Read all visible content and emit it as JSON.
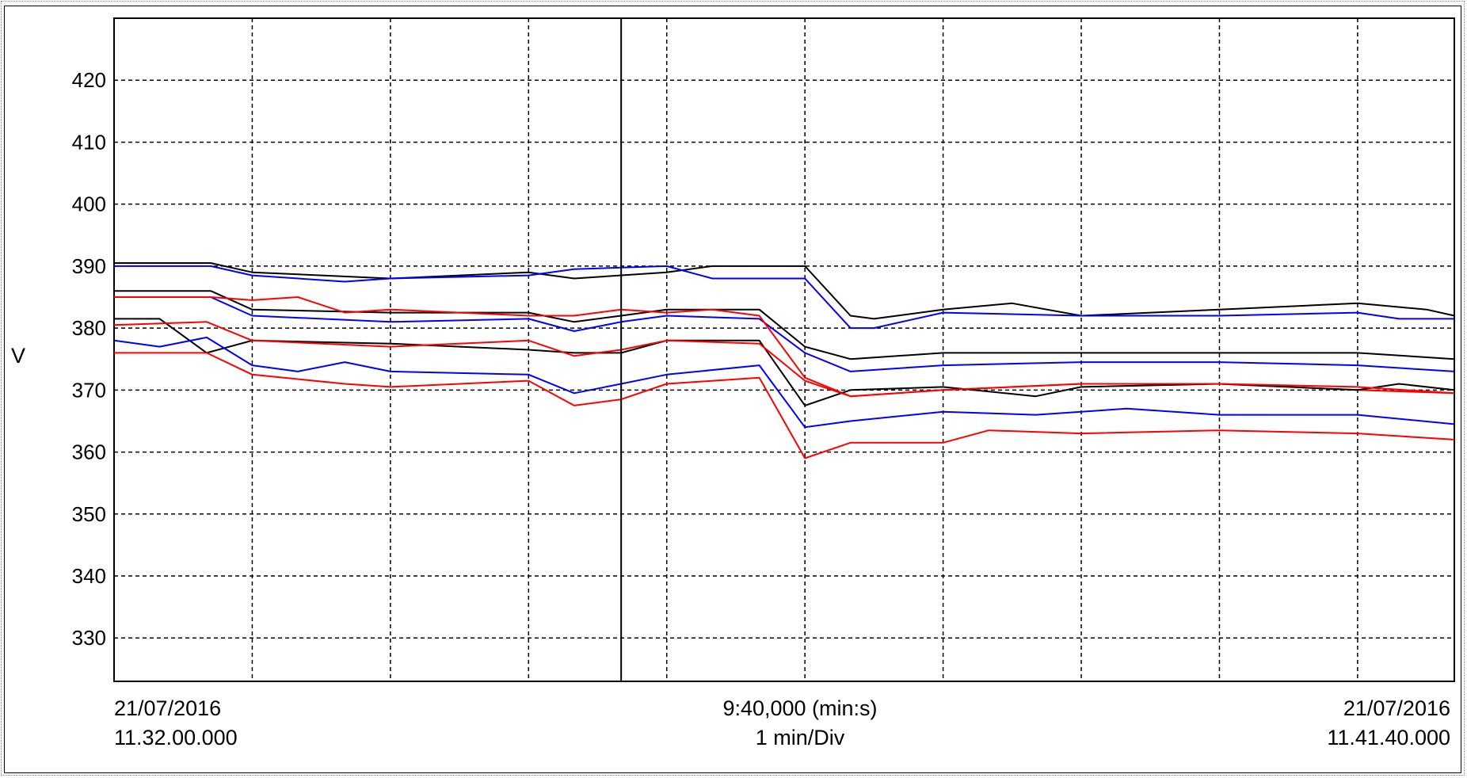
{
  "chart_data": {
    "type": "line",
    "ylabel": "V",
    "ylim": [
      323,
      430
    ],
    "yticks": [
      330,
      340,
      350,
      360,
      370,
      380,
      390,
      400,
      410,
      420
    ],
    "xlim": [
      0,
      9.7
    ],
    "x_start": {
      "date": "21/07/2016",
      "time": "11.32.00.000"
    },
    "x_end": {
      "date": "21/07/2016",
      "time": "11.41.40.000"
    },
    "x_span_label": "9:40,000 (min:s)",
    "x_div_label": "1 min/Div",
    "grid": true,
    "cursor_x": 3.67,
    "colors": {
      "black": "#000000",
      "blue": "#0000ff",
      "red": "#ff0000"
    },
    "series": [
      {
        "color": "black",
        "x": [
          0,
          0.7,
          1.0,
          2.0,
          3.0,
          3.33,
          4.0,
          4.33,
          5.0,
          5.33,
          5.5,
          6.0,
          6.5,
          7.0,
          8.0,
          9.0,
          9.5,
          9.7
        ],
        "y": [
          390.5,
          390.5,
          389,
          388,
          389,
          388,
          389,
          390,
          390,
          382,
          381.5,
          383,
          384,
          382,
          383,
          384,
          383,
          382
        ]
      },
      {
        "color": "blue",
        "x": [
          0,
          0.7,
          1.0,
          1.67,
          2.0,
          3.0,
          3.33,
          4.0,
          4.33,
          5.0,
          5.33,
          5.5,
          6.0,
          7.0,
          8.0,
          9.0,
          9.3,
          9.7
        ],
        "y": [
          390,
          390,
          388.5,
          387.5,
          388,
          388.5,
          389.5,
          390,
          388,
          388,
          380,
          380,
          382.5,
          382,
          382,
          382.5,
          381.5,
          381.5
        ]
      },
      {
        "color": "black",
        "x": [
          0,
          0.7,
          1.0,
          2.0,
          3.0,
          3.33,
          3.67,
          4.0,
          4.67,
          5.0,
          5.33,
          6.0,
          7.0,
          8.0,
          9.0,
          9.7
        ],
        "y": [
          386,
          386,
          383,
          382.5,
          382.5,
          381,
          382,
          383,
          383,
          377,
          375,
          376,
          376,
          376,
          376,
          375
        ]
      },
      {
        "color": "blue",
        "x": [
          0,
          0.7,
          1.0,
          2.0,
          3.0,
          3.33,
          3.67,
          4.0,
          4.67,
          5.0,
          5.33,
          6.0,
          7.0,
          8.0,
          9.0,
          9.7
        ],
        "y": [
          385,
          385,
          382,
          381,
          381.5,
          379.5,
          381,
          382,
          381.5,
          376,
          373,
          374,
          374.5,
          374.5,
          374,
          373
        ]
      },
      {
        "color": "red",
        "x": [
          0,
          0.7,
          1.0,
          1.33,
          1.67,
          2.0,
          3.0,
          3.33,
          3.67,
          4.0,
          4.33,
          4.67,
          5.0,
          5.33,
          6.0,
          7.0,
          8.0,
          9.0,
          9.7
        ],
        "y": [
          385,
          385,
          384.5,
          385,
          382.5,
          383,
          382,
          382,
          383,
          382.5,
          383,
          382,
          372,
          369,
          370,
          371,
          371,
          370,
          369.5
        ]
      },
      {
        "color": "black",
        "x": [
          0,
          0.33,
          0.67,
          1.0,
          2.0,
          3.0,
          3.33,
          3.67,
          4.0,
          4.67,
          5.0,
          5.33,
          6.0,
          6.67,
          7.0,
          8.0,
          9.0,
          9.3,
          9.7
        ],
        "y": [
          381.5,
          381.5,
          376,
          378,
          377.5,
          376.5,
          376,
          376,
          378,
          378,
          367.5,
          370,
          370.5,
          369,
          370.5,
          371,
          370,
          371,
          370
        ]
      },
      {
        "color": "red",
        "x": [
          0,
          0.67,
          1.0,
          2.0,
          3.0,
          3.33,
          3.67,
          4.0,
          4.67,
          5.0,
          5.33,
          6.0,
          7.0,
          8.0,
          9.0,
          9.7
        ],
        "y": [
          380.5,
          381,
          378,
          377,
          378,
          375.5,
          376.5,
          378,
          377.5,
          371.5,
          369,
          370,
          371,
          371,
          370.5,
          369.5
        ]
      },
      {
        "color": "blue",
        "x": [
          0,
          0.33,
          0.67,
          1.0,
          1.33,
          1.67,
          2.0,
          3.0,
          3.33,
          3.67,
          4.0,
          4.67,
          5.0,
          5.33,
          6.0,
          6.67,
          7.33,
          8.0,
          9.0,
          9.7
        ],
        "y": [
          378,
          377,
          378.5,
          374,
          373,
          374.5,
          373,
          372.5,
          369.5,
          371,
          372.5,
          374,
          364,
          365,
          366.5,
          366,
          367,
          366,
          366,
          364.5
        ]
      },
      {
        "color": "red",
        "x": [
          0,
          0.67,
          1.0,
          1.67,
          2.0,
          3.0,
          3.33,
          3.67,
          4.0,
          4.67,
          5.0,
          5.33,
          6.0,
          6.33,
          7.0,
          8.0,
          9.0,
          9.7
        ],
        "y": [
          376,
          376,
          372.5,
          371,
          370.5,
          371.5,
          367.5,
          368.5,
          371,
          372,
          359,
          361.5,
          361.5,
          363.5,
          363,
          363.5,
          363,
          362
        ]
      }
    ]
  }
}
